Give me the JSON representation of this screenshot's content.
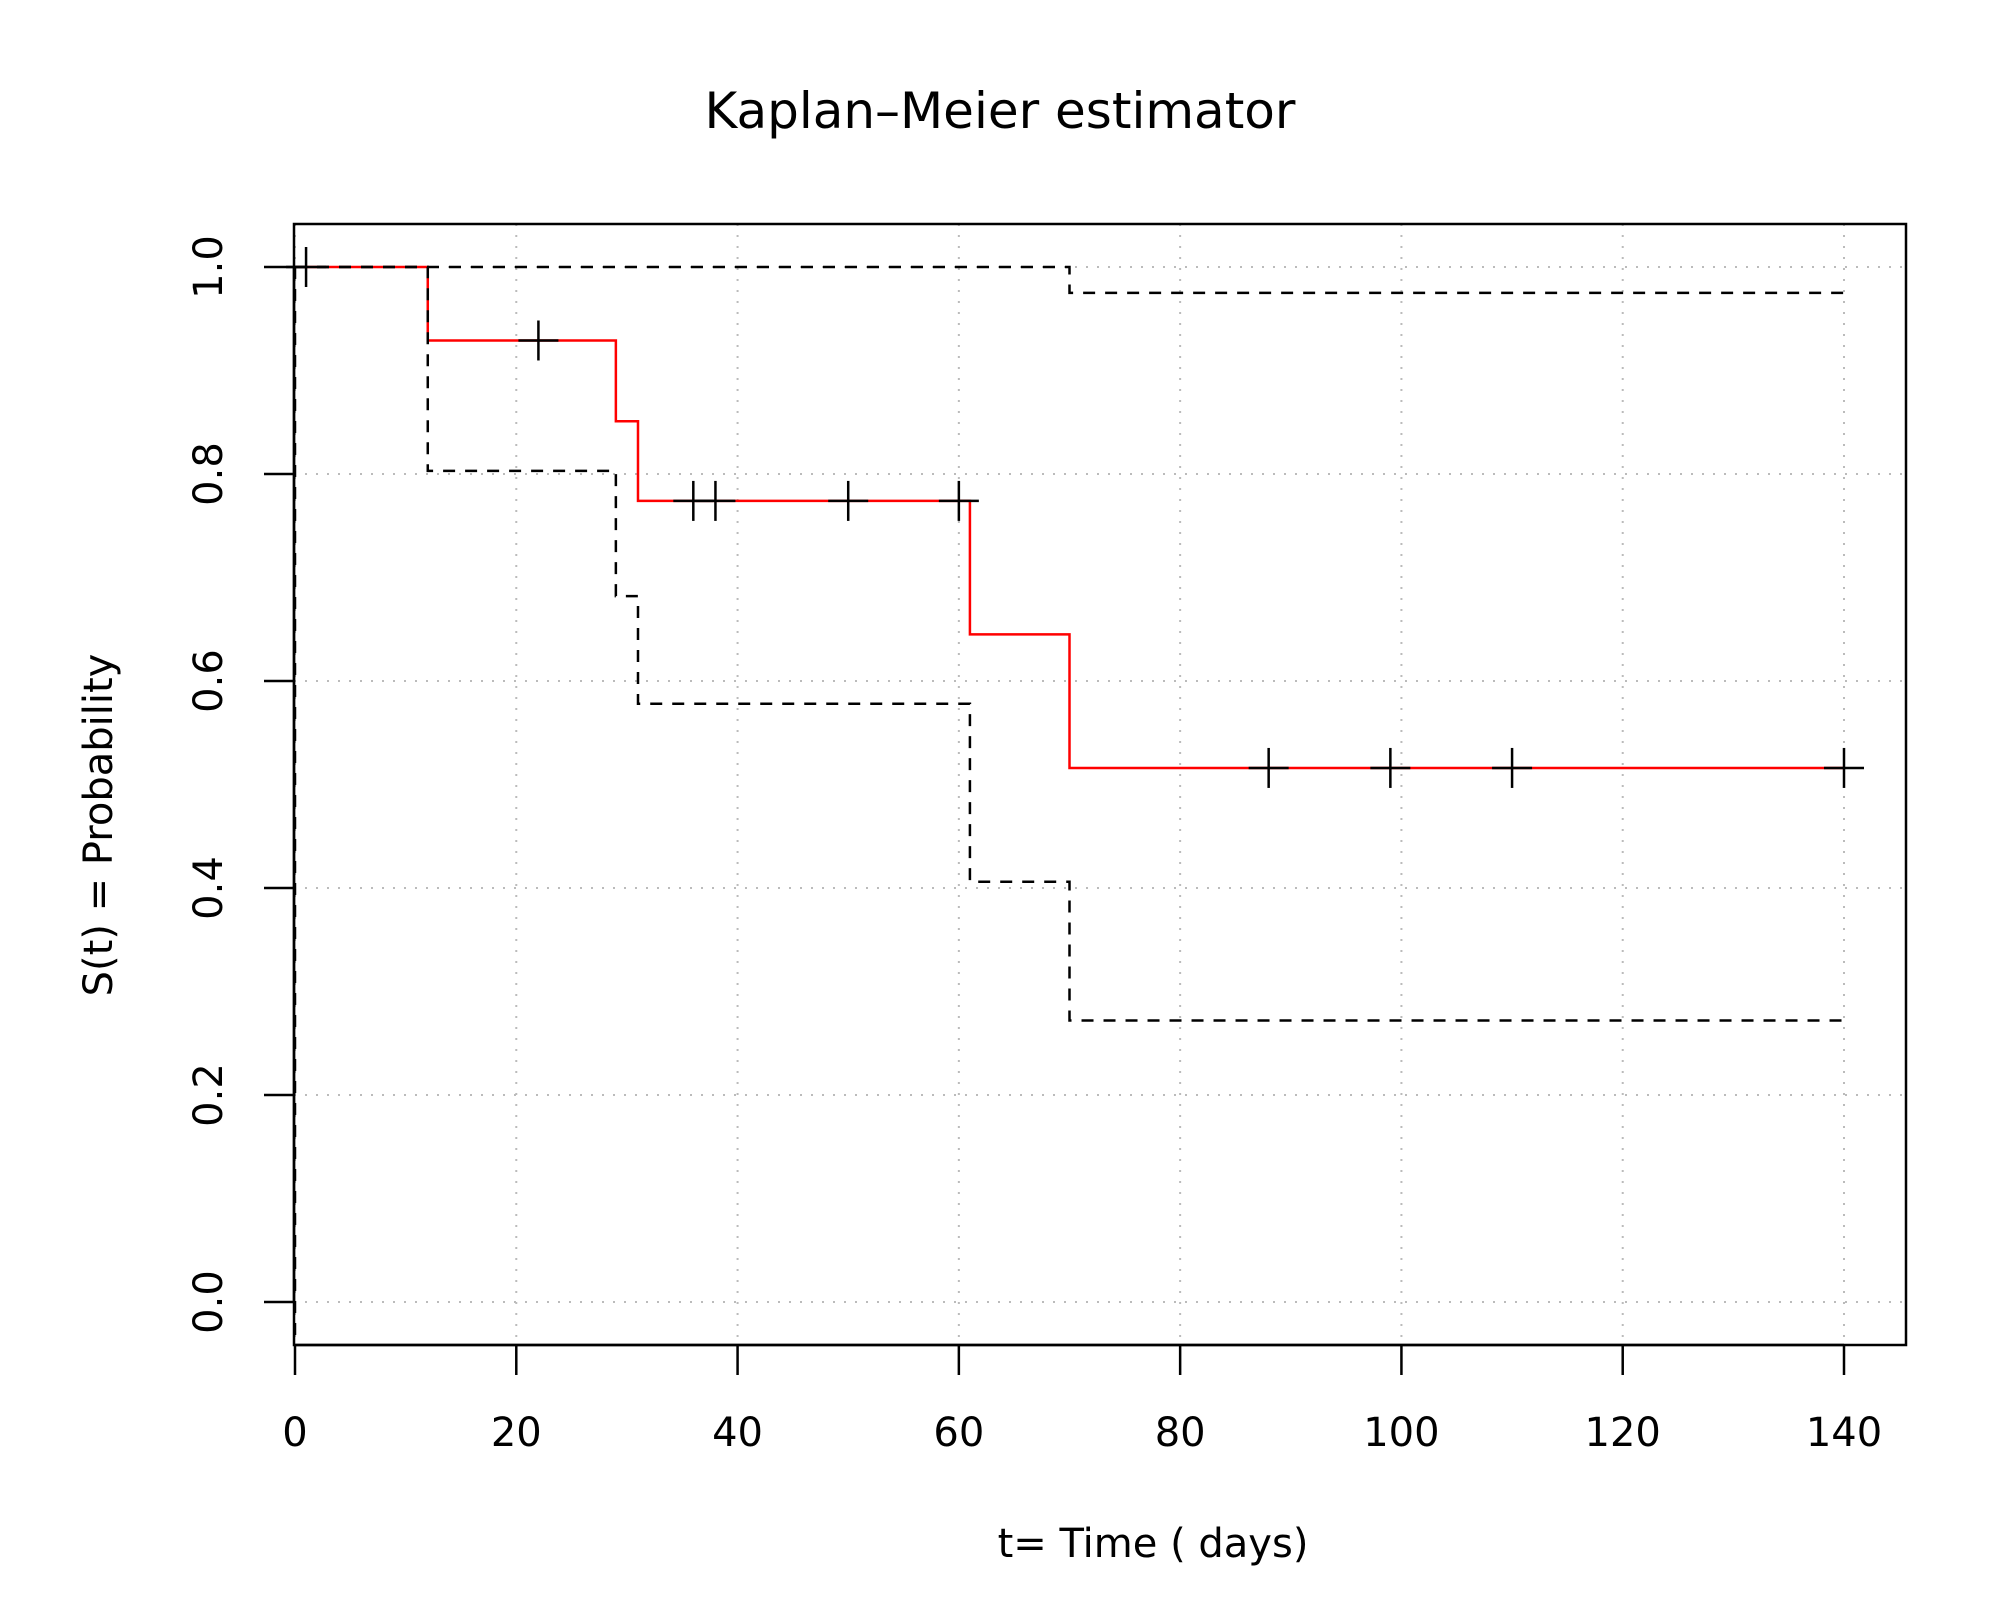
{
  "chart_data": {
    "type": "line",
    "title": "Kaplan–Meier estimator",
    "xlabel": "t= Time ( days)",
    "ylabel": "S(t) = Probability",
    "xlim": [
      0,
      145
    ],
    "ylim": [
      0,
      1.04
    ],
    "x_ticks": [
      0,
      20,
      40,
      60,
      80,
      100,
      120,
      140
    ],
    "y_ticks": [
      0.0,
      0.2,
      0.4,
      0.6,
      0.8,
      1.0
    ],
    "x_tick_labels": [
      "0",
      "20",
      "40",
      "60",
      "80",
      "100",
      "120",
      "140"
    ],
    "y_tick_labels": [
      "0.0",
      "0.2",
      "0.4",
      "0.6",
      "0.8",
      "1.0"
    ],
    "grid": true,
    "legend": "none",
    "colors": {
      "survival": "#ff0000",
      "confidence": "#000000",
      "censor": "#000000",
      "grid": "#bbbbbb"
    },
    "series": [
      {
        "style": "step",
        "x": [
          0,
          12,
          29,
          31,
          61,
          70,
          140
        ],
        "y": [
          1.0,
          0.929,
          0.851,
          0.774,
          0.645,
          0.516,
          0.516
        ]
      },
      {
        "style": "step-dashed",
        "x": [
          0,
          12,
          29,
          31,
          61,
          70,
          140
        ],
        "y": [
          1.0,
          0.803,
          0.682,
          0.578,
          0.406,
          0.272,
          0.272
        ]
      },
      {
        "style": "step-dashed",
        "x": [
          0,
          12,
          29,
          31,
          61,
          70,
          140
        ],
        "y": [
          1.0,
          1.0,
          1.0,
          1.0,
          1.0,
          0.975,
          0.975
        ]
      }
    ],
    "censored": [
      {
        "x": 1,
        "y": 1.0
      },
      {
        "x": 22,
        "y": 0.929
      },
      {
        "x": 36,
        "y": 0.774
      },
      {
        "x": 38,
        "y": 0.774
      },
      {
        "x": 50,
        "y": 0.774
      },
      {
        "x": 60,
        "y": 0.774
      },
      {
        "x": 88,
        "y": 0.516
      },
      {
        "x": 99,
        "y": 0.516
      },
      {
        "x": 110,
        "y": 0.516
      },
      {
        "x": 140,
        "y": 0.516
      }
    ]
  }
}
